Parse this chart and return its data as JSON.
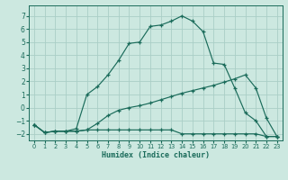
{
  "title": "",
  "xlabel": "Humidex (Indice chaleur)",
  "bg_color": "#cce8e0",
  "grid_color": "#aacec6",
  "line_color": "#1a6b5a",
  "xlim": [
    -0.5,
    23.5
  ],
  "ylim": [
    -2.5,
    7.8
  ],
  "yticks": [
    -2,
    -1,
    0,
    1,
    2,
    3,
    4,
    5,
    6,
    7
  ],
  "xticks": [
    0,
    1,
    2,
    3,
    4,
    5,
    6,
    7,
    8,
    9,
    10,
    11,
    12,
    13,
    14,
    15,
    16,
    17,
    18,
    19,
    20,
    21,
    22,
    23
  ],
  "line1_x": [
    0,
    1,
    2,
    3,
    4,
    5,
    6,
    7,
    8,
    9,
    10,
    11,
    12,
    13,
    14,
    15,
    16,
    17,
    18,
    19,
    20,
    21,
    22,
    23
  ],
  "line1_y": [
    -1.3,
    -1.9,
    -1.8,
    -1.8,
    -1.8,
    -1.7,
    -1.7,
    -1.7,
    -1.7,
    -1.7,
    -1.7,
    -1.7,
    -1.7,
    -1.7,
    -2.0,
    -2.0,
    -2.0,
    -2.0,
    -2.0,
    -2.0,
    -2.0,
    -2.0,
    -2.2,
    -2.2
  ],
  "line2_x": [
    0,
    1,
    2,
    3,
    4,
    5,
    6,
    7,
    8,
    9,
    10,
    11,
    12,
    13,
    14,
    15,
    16,
    17,
    18,
    19,
    20,
    21,
    22,
    23
  ],
  "line2_y": [
    -1.3,
    -1.9,
    -1.8,
    -1.8,
    -1.8,
    -1.7,
    -1.2,
    -0.6,
    -0.2,
    0.0,
    0.15,
    0.35,
    0.6,
    0.85,
    1.1,
    1.3,
    1.5,
    1.7,
    1.95,
    2.2,
    2.5,
    1.5,
    -0.8,
    -2.2
  ],
  "line3_x": [
    0,
    1,
    2,
    3,
    4,
    5,
    6,
    7,
    8,
    9,
    10,
    11,
    12,
    13,
    14,
    15,
    16,
    17,
    18,
    19,
    20,
    21,
    22,
    23
  ],
  "line3_y": [
    -1.3,
    -1.9,
    -1.8,
    -1.8,
    -1.6,
    1.0,
    1.6,
    2.5,
    3.6,
    4.9,
    5.0,
    6.2,
    6.3,
    6.6,
    7.0,
    6.6,
    5.8,
    3.4,
    3.3,
    1.5,
    -0.4,
    -1.0,
    -2.2,
    -2.2
  ]
}
